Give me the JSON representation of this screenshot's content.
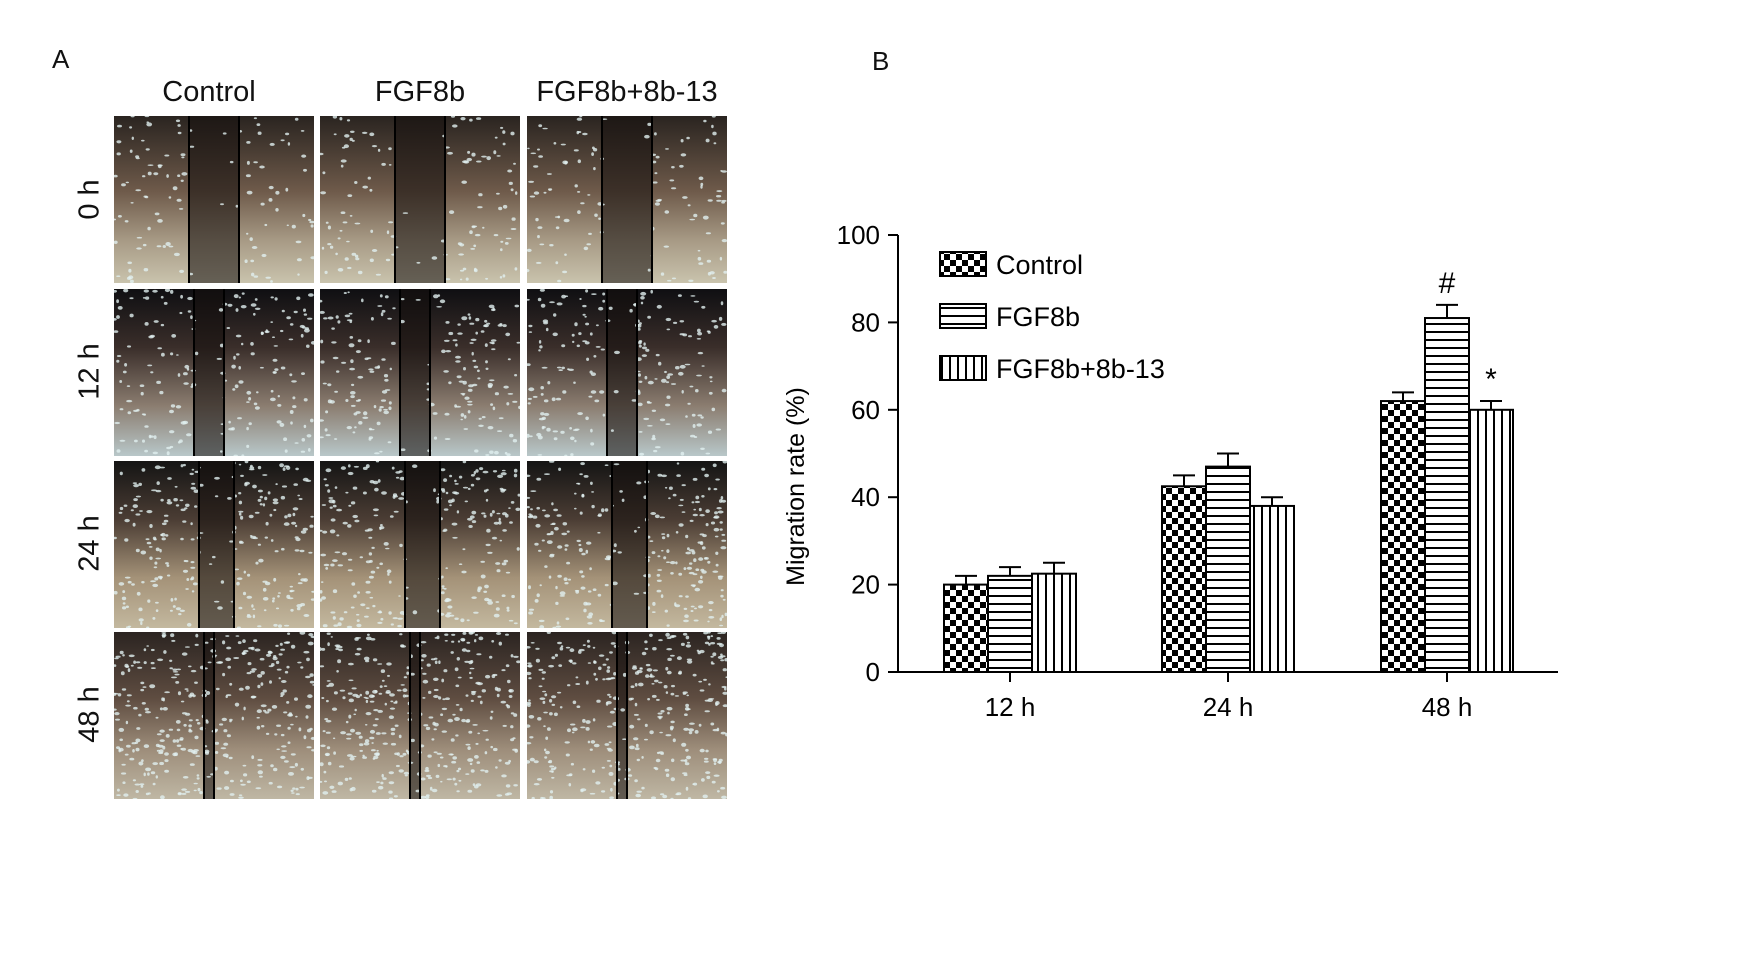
{
  "panel_a": {
    "letter": "A",
    "columns": [
      "Control",
      "FGF8b",
      "FGF8b+8b-13"
    ],
    "rows": [
      "0 h",
      "12 h",
      "24 h",
      "48 h"
    ]
  },
  "panel_b": {
    "letter": "B"
  },
  "chart_data": {
    "type": "bar",
    "categories": [
      "12 h",
      "24 h",
      "48 h"
    ],
    "series": [
      {
        "name": "Control",
        "values": [
          20,
          42.5,
          62
        ],
        "errors": [
          2,
          2.5,
          2
        ],
        "pattern": "checker"
      },
      {
        "name": "FGF8b",
        "values": [
          22,
          47,
          81
        ],
        "errors": [
          2,
          3,
          3
        ],
        "pattern": "horizontal"
      },
      {
        "name": "FGF8b+8b-13",
        "values": [
          22.5,
          38,
          60
        ],
        "errors": [
          2.5,
          2,
          2
        ],
        "pattern": "vertical"
      }
    ],
    "annotations": [
      {
        "category": "48 h",
        "series": "FGF8b",
        "text": "#"
      },
      {
        "category": "48 h",
        "series": "FGF8b+8b-13",
        "text": "*"
      }
    ],
    "ylabel": "Migration rate (%)",
    "xlabel": "",
    "ylim": [
      0,
      100
    ],
    "yticks": [
      0,
      20,
      40,
      60,
      80,
      100
    ],
    "legend_position": "top-left",
    "grid": false
  }
}
